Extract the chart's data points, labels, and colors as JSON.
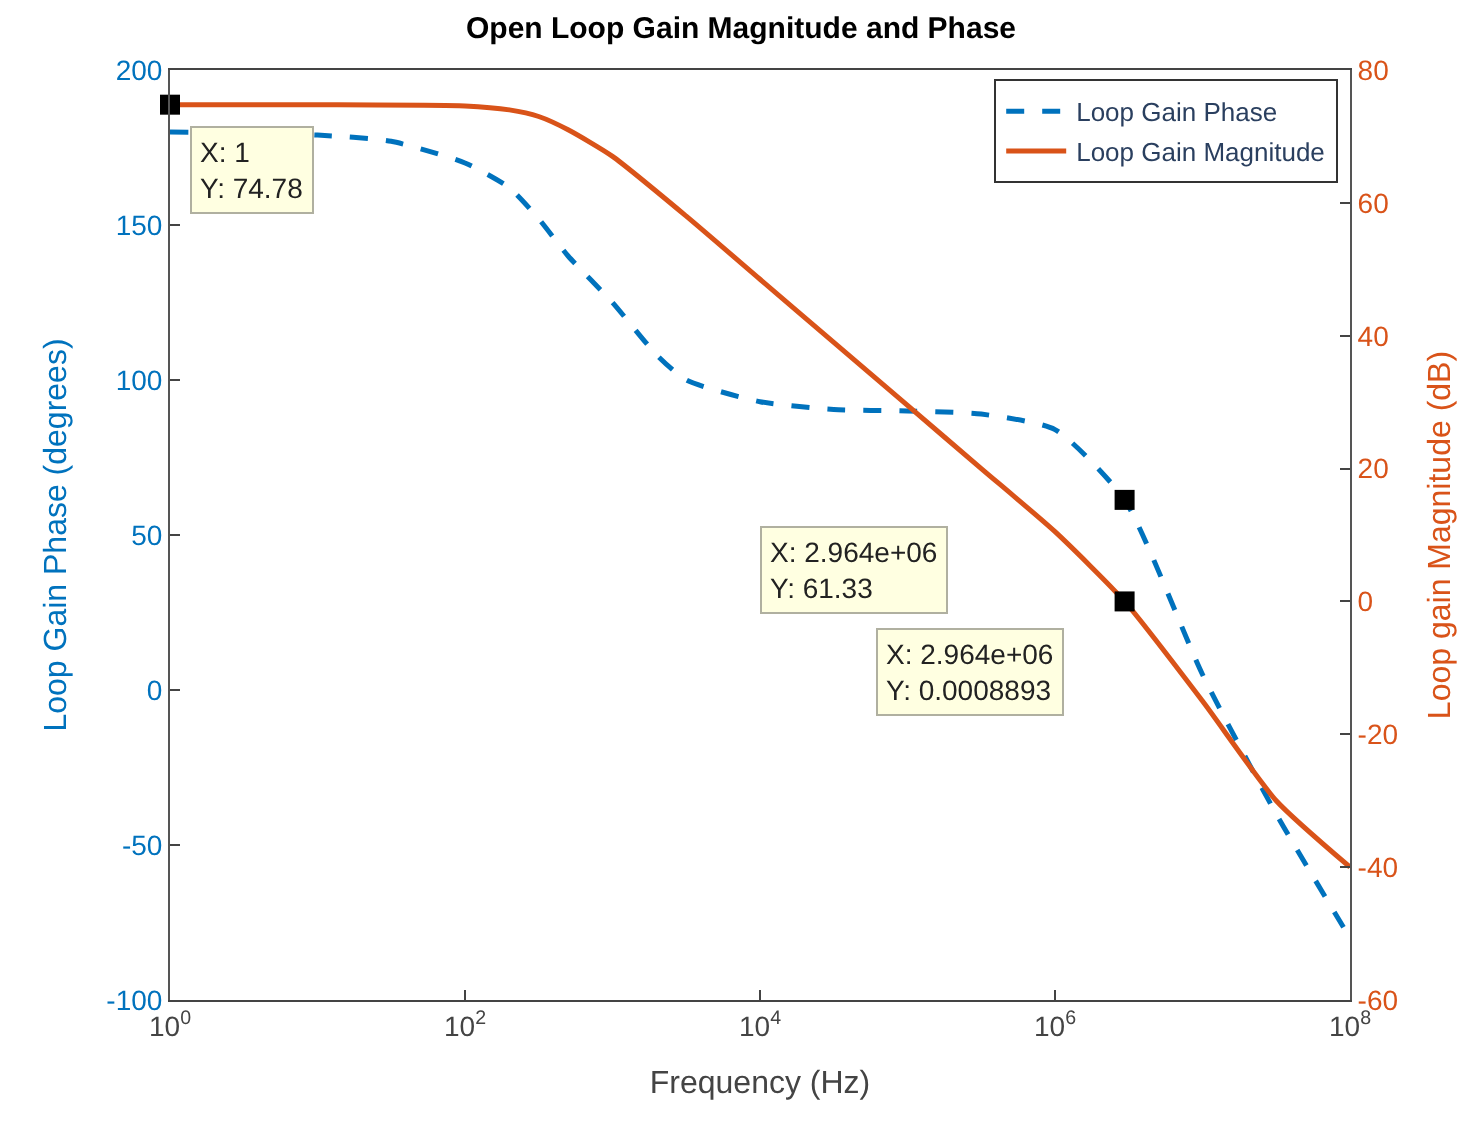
{
  "chart_data": {
    "type": "line",
    "title": "Open Loop Gain Magnitude and Phase",
    "xlabel": "Frequency (Hz)",
    "ylabel": "Loop Gain Phase (degrees)",
    "y2label": "Loop gain Magnitude (dB)",
    "log": "x",
    "legend": "top right",
    "xlim": [
      1,
      100000000
    ],
    "xticks": [
      {
        "value": 1,
        "label": "10$^{0}$"
      },
      {
        "value": 100,
        "label": "10$^{2}$"
      },
      {
        "value": 10000,
        "label": "10$^{4}$"
      },
      {
        "value": 1000000,
        "label": "10$^{6}$"
      },
      {
        "value": 100000000,
        "label": "10$^{8}$"
      }
    ],
    "ylim": [
      -100,
      200
    ],
    "yticks": [
      -100,
      -50,
      0,
      50,
      100,
      150,
      200
    ],
    "y2lim": [
      -60,
      80
    ],
    "y2ticks": [
      -60,
      -40,
      -20,
      0,
      20,
      40,
      60,
      80
    ],
    "series": [
      {
        "name": "Loop Gain Phase",
        "color": "#0072bd",
        "line_style": "dashed",
        "x": [
          1,
          10,
          31.6,
          100,
          200,
          316,
          500,
          1000,
          2000,
          3162,
          10000,
          31623,
          100000,
          316228,
          1000000,
          2964000,
          10000000,
          31622777,
          100000000
        ],
        "values": [
          180,
          179,
          177,
          170,
          162,
          152,
          140,
          125,
          108,
          100,
          93,
          90.5,
          90,
          89,
          84,
          61.33,
          5,
          -40,
          -80
        ]
      },
      {
        "name": "Loop Gain Magnitude",
        "color": "#d95319",
        "line_style": "solid",
        "axis": "y2",
        "x": [
          1,
          10,
          100,
          200,
          316,
          500,
          1000,
          3162,
          10000,
          31623,
          100000,
          316228,
          1000000,
          2964000,
          10000000,
          31622777,
          100000000
        ],
        "values": [
          74.78,
          74.78,
          74.6,
          74,
          73,
          71,
          67,
          58,
          48.5,
          39,
          29.5,
          20,
          10.5,
          0,
          -15,
          -30,
          -40
        ]
      },
      {
        "type": "scatter",
        "marker": "square",
        "color": "#000000",
        "axis": "y2",
        "x": [
          1,
          2964000
        ],
        "values": [
          74.78,
          0.0008893
        ]
      },
      {
        "type": "scatter",
        "marker": "square",
        "color": "#000000",
        "x": [
          2964000
        ],
        "values": [
          61.33
        ]
      }
    ],
    "annotations": [
      "X: 1\nY: 74.78",
      "X: 2.964e+06\nY: 61.33",
      "X: 2.964e+06\nY: 0.0008893"
    ]
  }
}
